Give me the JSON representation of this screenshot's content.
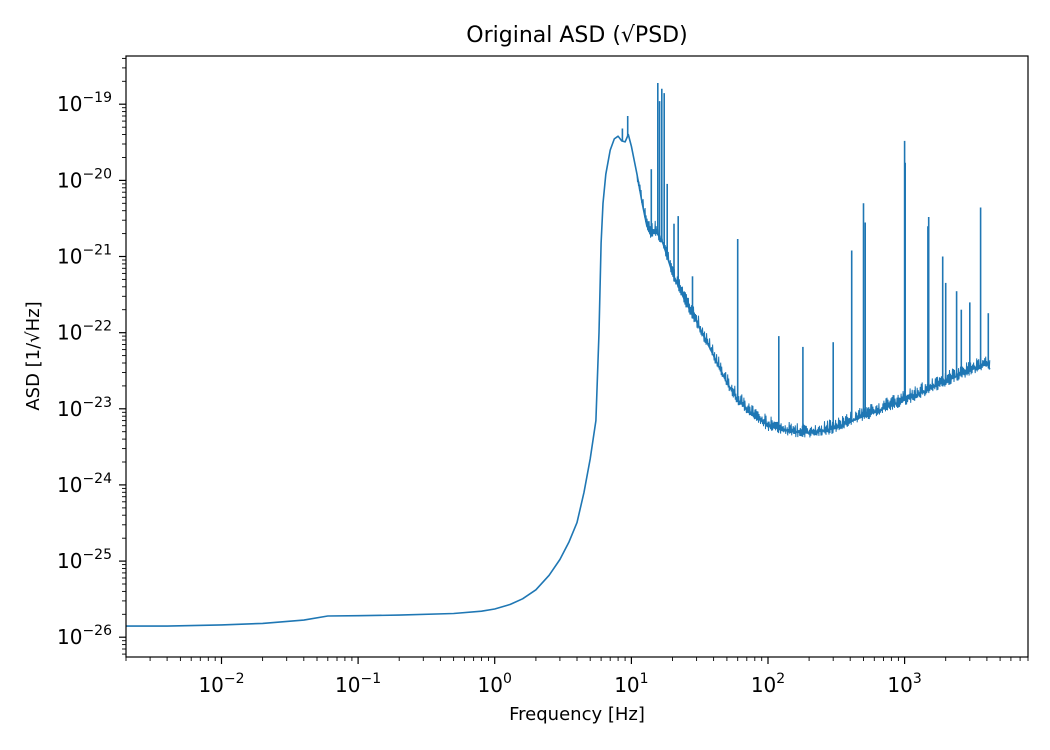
{
  "chart_data": {
    "type": "line",
    "title": "Original ASD (√PSD)",
    "xlabel": "Frequency [Hz]",
    "ylabel": "ASD [1/√Hz]",
    "x_scale": "log",
    "y_scale": "log",
    "xlim": [
      0.002,
      8000
    ],
    "ylim": [
      5.5e-27,
      4.3e-19
    ],
    "x_ticks": [
      {
        "base": "10",
        "exp": "−2",
        "value": 0.01
      },
      {
        "base": "10",
        "exp": "−1",
        "value": 0.1
      },
      {
        "base": "10",
        "exp": "0",
        "value": 1
      },
      {
        "base": "10",
        "exp": "1",
        "value": 10
      },
      {
        "base": "10",
        "exp": "2",
        "value": 100
      },
      {
        "base": "10",
        "exp": "3",
        "value": 1000
      }
    ],
    "y_ticks": [
      {
        "base": "10",
        "exp": "−26",
        "value": 1e-26
      },
      {
        "base": "10",
        "exp": "−25",
        "value": 1e-25
      },
      {
        "base": "10",
        "exp": "−24",
        "value": 1e-24
      },
      {
        "base": "10",
        "exp": "−23",
        "value": 1e-23
      },
      {
        "base": "10",
        "exp": "−22",
        "value": 1e-22
      },
      {
        "base": "10",
        "exp": "−21",
        "value": 1e-21
      },
      {
        "base": "10",
        "exp": "−20",
        "value": 1e-20
      },
      {
        "base": "10",
        "exp": "−19",
        "value": 1e-19
      }
    ],
    "grid": false,
    "color": "#1f77b4",
    "series": [
      {
        "x": [
          0.002,
          0.004,
          0.01,
          0.02,
          0.04,
          0.06,
          0.1,
          0.2,
          0.5,
          0.8,
          1.0,
          1.3,
          1.6,
          2.0,
          2.5,
          3.0,
          3.5,
          4.0,
          4.5,
          5.0,
          5.5,
          5.8,
          6.0,
          6.2,
          6.5,
          7.0,
          7.5,
          8.0,
          8.5,
          9.0,
          9.5,
          10.0,
          11.0,
          12.0,
          13.0,
          14.0,
          15.0,
          17.0,
          20.0,
          25.0,
          30.0,
          40.0,
          50.0,
          60.0,
          70.0,
          80.0,
          100.0,
          150.0,
          200.0,
          300.0,
          500.0,
          700.0,
          1000.0,
          1500.0,
          2000.0,
          3000.0,
          3500.0,
          4000.0,
          4200.0
        ],
        "y": [
          1.4e-26,
          1.4e-26,
          1.45e-26,
          1.52e-26,
          1.68e-26,
          1.9e-26,
          1.92e-26,
          1.95e-26,
          2.05e-26,
          2.2e-26,
          2.35e-26,
          2.7e-26,
          3.2e-26,
          4.2e-26,
          6.5e-26,
          1.05e-25,
          1.8e-25,
          3.2e-25,
          8e-25,
          2.2e-24,
          7e-24,
          1e-22,
          1.5e-21,
          5e-21,
          1.2e-20,
          2.5e-20,
          3.5e-20,
          3.8e-20,
          3.3e-20,
          3.2e-20,
          4e-20,
          2.8e-20,
          1.2e-20,
          5e-21,
          2.5e-21,
          2e-21,
          2.2e-21,
          1.5e-21,
          6e-22,
          2.5e-22,
          1.4e-22,
          5e-23,
          2.2e-23,
          1.3e-23,
          1e-23,
          8e-24,
          6e-24,
          5e-24,
          4.8e-24,
          5.5e-24,
          8e-24,
          1e-23,
          1.3e-23,
          1.8e-23,
          2.3e-23,
          3.2e-23,
          3.6e-23,
          4e-23,
          3.3e-23
        ]
      }
    ],
    "spikes": [
      {
        "x": 8.6,
        "y": 4.8e-20
      },
      {
        "x": 9.4,
        "y": 7e-20
      },
      {
        "x": 14.0,
        "y": 1.4e-20
      },
      {
        "x": 15.6,
        "y": 1.9e-19
      },
      {
        "x": 16.1,
        "y": 1.1e-19
      },
      {
        "x": 16.7,
        "y": 1.6e-19
      },
      {
        "x": 17.4,
        "y": 1.4e-19
      },
      {
        "x": 18.3,
        "y": 9e-21
      },
      {
        "x": 20.5,
        "y": 2.7e-21
      },
      {
        "x": 22.0,
        "y": 3.4e-21
      },
      {
        "x": 28.0,
        "y": 5.5e-22
      },
      {
        "x": 60.0,
        "y": 1.7e-21
      },
      {
        "x": 120.0,
        "y": 9e-23
      },
      {
        "x": 180.0,
        "y": 6.5e-23
      },
      {
        "x": 300.0,
        "y": 7.5e-23
      },
      {
        "x": 410.0,
        "y": 1.2e-21
      },
      {
        "x": 500.0,
        "y": 5e-21
      },
      {
        "x": 515.0,
        "y": 2.8e-21
      },
      {
        "x": 1000.0,
        "y": 3.3e-20
      },
      {
        "x": 1010.0,
        "y": 1.7e-20
      },
      {
        "x": 1480.0,
        "y": 2.5e-21
      },
      {
        "x": 1500.0,
        "y": 3.3e-21
      },
      {
        "x": 1900.0,
        "y": 1e-21
      },
      {
        "x": 2000.0,
        "y": 4.5e-22
      },
      {
        "x": 2400.0,
        "y": 3.5e-22
      },
      {
        "x": 2600.0,
        "y": 2e-22
      },
      {
        "x": 3000.0,
        "y": 2.5e-22
      },
      {
        "x": 3600.0,
        "y": 4.4e-21
      },
      {
        "x": 4100.0,
        "y": 1.8e-22
      }
    ]
  }
}
